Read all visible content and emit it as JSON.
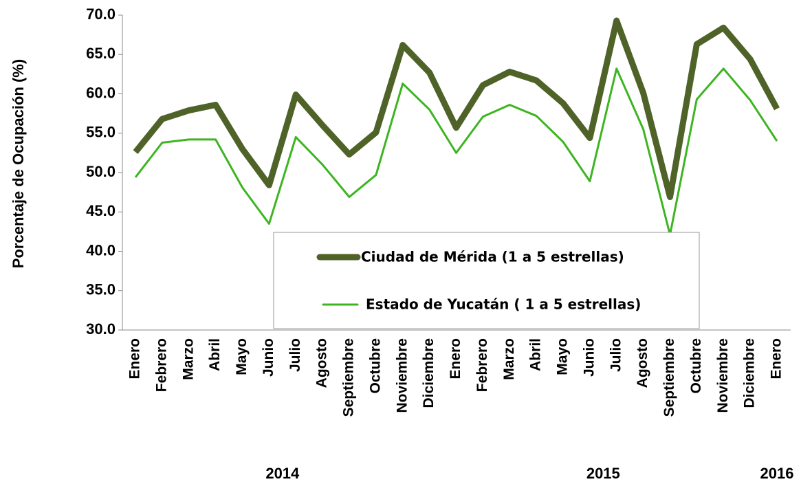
{
  "chart_data": {
    "type": "line",
    "y_label": "Porcentaje de Ocupación (%)",
    "categories": [
      "Enero",
      "Febrero",
      "Marzo",
      "Abril",
      "Mayo",
      "Junio",
      "Julio",
      "Agosto",
      "Septiembre",
      "Octubre",
      "Noviembre",
      "Diciembre",
      "Enero",
      "Febrero",
      "Marzo",
      "Abril",
      "Mayo",
      "Junio",
      "Julio",
      "Agosto",
      "Septiembre",
      "Octubre",
      "Noviembre",
      "Diciembre",
      "Enero"
    ],
    "year_labels": [
      "2014",
      "2015",
      "2016"
    ],
    "series": [
      {
        "name": "Ciudad de Mérida (1 a 5 estrellas)",
        "color": "#4f6228",
        "values": [
          52.6,
          56.8,
          57.9,
          58.6,
          53.0,
          48.4,
          59.9,
          56.0,
          52.3,
          55.1,
          66.2,
          62.7,
          55.7,
          61.1,
          62.8,
          61.7,
          58.8,
          54.4,
          69.3,
          60.1,
          46.9,
          66.3,
          68.4,
          64.4,
          58.1
        ]
      },
      {
        "name": "Estado de Yucatán ( 1 a 5 estrellas)",
        "color": "#3cb521",
        "values": [
          49.4,
          53.8,
          54.2,
          54.2,
          48.1,
          43.5,
          54.5,
          51.0,
          46.9,
          49.7,
          61.3,
          58.0,
          52.5,
          57.1,
          58.6,
          57.2,
          53.9,
          48.9,
          63.2,
          55.5,
          42.1,
          59.3,
          63.2,
          59.2,
          54.0
        ]
      }
    ],
    "ylim": [
      30,
      70
    ],
    "yticks": [
      {
        "value": 30,
        "label": "30.0"
      },
      {
        "value": 35,
        "label": "35.0"
      },
      {
        "value": 40,
        "label": "40.0"
      },
      {
        "value": 45,
        "label": "45.0"
      },
      {
        "value": 50,
        "label": "50.0"
      },
      {
        "value": 55,
        "label": "55.0"
      },
      {
        "value": 60,
        "label": "60.0"
      },
      {
        "value": 65,
        "label": "65.0"
      },
      {
        "value": 70,
        "label": "70.0"
      }
    ],
    "grid": false
  }
}
